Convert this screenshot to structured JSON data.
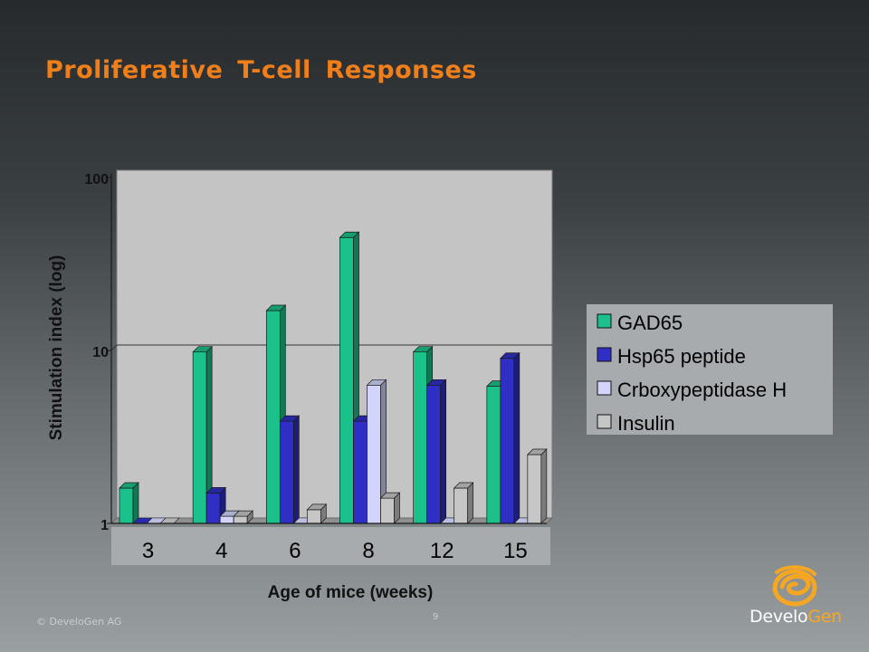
{
  "slide": {
    "title": "Proliferative  T-cell Responses",
    "copyright": "© DeveloGen AG",
    "page_number": "9",
    "logo": {
      "prefix": "Develo",
      "suffix": "Gen",
      "icon": "develogen-swirl-icon"
    }
  },
  "colors": {
    "title": "#f07f1a",
    "GAD65": "#1bc18a",
    "Hsp65 peptide": "#2f2fc6",
    "Crboxypeptidase H": "#d2d4fb",
    "Insulin": "#c6c6c6"
  },
  "chart_data": {
    "type": "bar",
    "yscale": "log",
    "ylim": [
      1,
      100
    ],
    "yticks": [
      "1",
      "10",
      "100"
    ],
    "xlabel": "Age of mice (weeks)",
    "ylabel": "Stimulation index (log)",
    "categories": [
      "3",
      "4",
      "6",
      "8",
      "12",
      "15"
    ],
    "gridlines": "y-major at 10",
    "legend_position": "right",
    "series": [
      {
        "name": "GAD65",
        "values": [
          1.6,
          9.8,
          17,
          45,
          9.8,
          6.2
        ]
      },
      {
        "name": "Hsp65 peptide",
        "values": [
          1.0,
          1.5,
          3.9,
          3.9,
          6.3,
          9.0
        ]
      },
      {
        "name": "Crboxypeptidase H",
        "values": [
          1.0,
          1.1,
          1.0,
          6.3,
          1.0,
          1.0
        ]
      },
      {
        "name": "Insulin",
        "values": [
          1.0,
          1.1,
          1.2,
          1.4,
          1.6,
          2.5
        ]
      }
    ]
  }
}
